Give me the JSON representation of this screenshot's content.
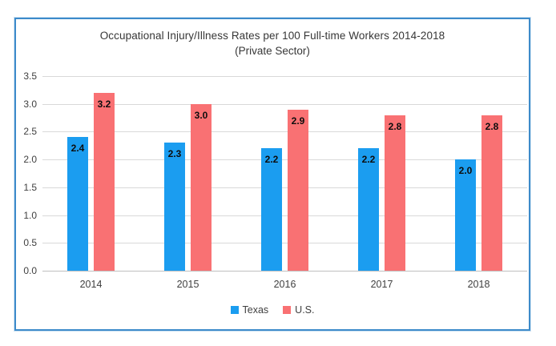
{
  "chart_data": {
    "type": "bar",
    "title": "Occupational Injury/Illness Rates per 100 Full-time Workers 2014-2018",
    "subtitle": "(Private Sector)",
    "categories": [
      "2014",
      "2015",
      "2016",
      "2017",
      "2018"
    ],
    "series": [
      {
        "name": "Texas",
        "color": "#1b9df0",
        "values": [
          2.4,
          2.3,
          2.2,
          2.2,
          2.0
        ]
      },
      {
        "name": "U.S.",
        "color": "#f97173",
        "values": [
          3.2,
          3.0,
          2.9,
          2.8,
          2.8
        ]
      }
    ],
    "ylim": [
      0,
      3.5
    ],
    "yticks": [
      "3.5",
      "3.0",
      "2.5",
      "2.0",
      "1.5",
      "1.0",
      "0.5",
      "0.0"
    ],
    "grid": true,
    "legend_position": "bottom",
    "data_labels": "inside-end",
    "label_format": "one-decimal"
  },
  "frame": {
    "border_color": "#3d8bca",
    "gridline_color": "#d9d9d9"
  }
}
